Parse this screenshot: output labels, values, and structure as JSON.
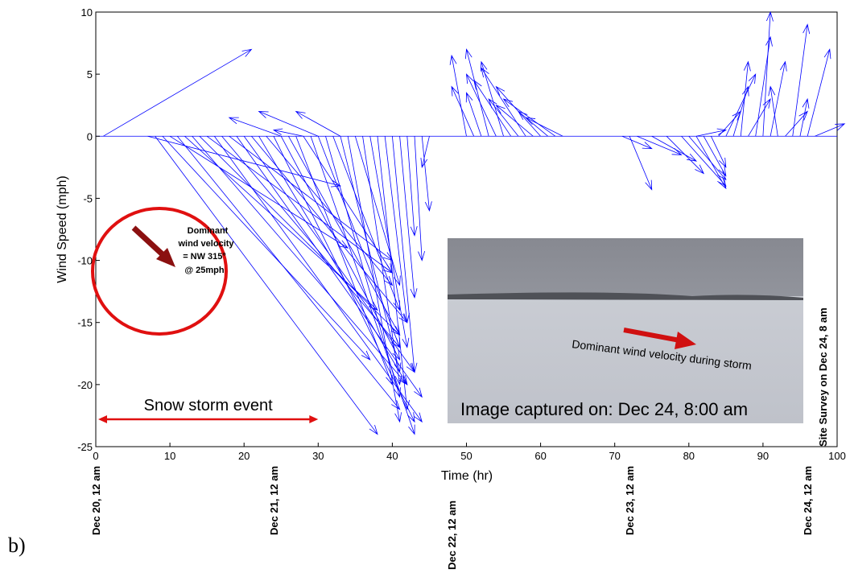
{
  "panel_label": "b)",
  "chart_data": {
    "type": "quiver",
    "xlabel": "Time (hr)",
    "ylabel": "Wind Speed (mph)",
    "xlim": [
      0,
      100
    ],
    "ylim": [
      -25,
      10
    ],
    "xticks": [
      0,
      10,
      20,
      30,
      40,
      50,
      60,
      70,
      80,
      90,
      100
    ],
    "yticks": [
      -25,
      -20,
      -15,
      -10,
      -5,
      0,
      5,
      10
    ],
    "color": "#0000ff",
    "x": [
      1,
      7,
      8,
      9,
      10,
      11,
      12,
      13,
      14,
      15,
      16,
      17,
      18,
      19,
      20,
      21,
      22,
      23,
      24,
      25,
      26,
      27,
      28,
      29,
      30,
      31,
      32,
      33,
      34,
      35,
      36,
      37,
      38,
      39,
      40,
      41,
      42,
      43,
      44,
      45,
      25,
      30,
      33,
      28,
      50,
      51,
      52,
      53,
      54,
      55,
      56,
      57,
      58,
      59,
      60,
      61,
      62,
      63,
      71,
      72,
      73,
      75,
      77,
      79,
      80,
      81,
      82,
      83,
      81,
      84,
      85,
      86,
      87,
      88,
      89,
      90,
      91,
      92,
      93,
      94,
      95,
      96,
      97
    ],
    "u": [
      20,
      26,
      30,
      28,
      24,
      30,
      26,
      29,
      27,
      25,
      28,
      24,
      22,
      25,
      23,
      21,
      20,
      17,
      19,
      16,
      15,
      13,
      12,
      14,
      11,
      10,
      9,
      8,
      7,
      6,
      5,
      5,
      4,
      3,
      3,
      2,
      1,
      1,
      1,
      -1,
      -7,
      -8,
      -6,
      -4,
      -2,
      -3,
      -2,
      -3,
      -4,
      -3,
      -5,
      -4,
      -6,
      -5,
      -6,
      -4,
      -7,
      -5,
      4,
      3,
      6,
      6,
      5,
      6,
      5,
      4,
      3,
      2,
      4,
      3,
      4,
      2,
      1,
      3,
      2,
      1,
      2,
      -1,
      3,
      2,
      1,
      3,
      4
    ],
    "v": [
      7,
      -4,
      -24,
      -18,
      -9,
      -22,
      -14,
      -20,
      -16,
      -11,
      -23,
      -17,
      -10,
      -21,
      -19,
      -15,
      -20,
      -12,
      -23,
      -18,
      -16,
      -20,
      -11,
      -24,
      -17,
      -21,
      -14,
      -19,
      -23,
      -12,
      -20,
      -17,
      -22,
      -15,
      -19,
      -13,
      -8,
      -10,
      -6,
      -2.5,
      1.5,
      2,
      2,
      0.5,
      6.5,
      4,
      3.5,
      7,
      5,
      6,
      4.5,
      3,
      5.5,
      2.5,
      4,
      2,
      3,
      1.5,
      -1,
      -4.3,
      -1.5,
      -2,
      -3,
      -4,
      -3.5,
      -4.2,
      -3.2,
      -2.5,
      0.5,
      2,
      5,
      4,
      6,
      3,
      8,
      10,
      6,
      4,
      2,
      9,
      3,
      7,
      1
    ],
    "date_labels": [
      {
        "value": 0,
        "label": "Dec 20, 12 am"
      },
      {
        "value": 24,
        "label": "Dec 21, 12 am"
      },
      {
        "value": 48,
        "label": "Dec 22, 12 am"
      },
      {
        "value": 72,
        "label": "Dec 23, 12 am"
      },
      {
        "value": 96,
        "label": "Dec 24, 12 am"
      }
    ],
    "survey_label": "Site Survey on Dec 24, 8 am",
    "storm_event": {
      "label": "Snow storm event",
      "start": 0,
      "end": 30
    },
    "dominant_note": [
      "Dominant",
      "wind velocity",
      "= NW 315°",
      "@ 25mph"
    ],
    "photo": {
      "arrow_caption": "Dominant wind velocity during storm",
      "caption": "Image captured on: Dec 24, 8:00 am"
    }
  }
}
